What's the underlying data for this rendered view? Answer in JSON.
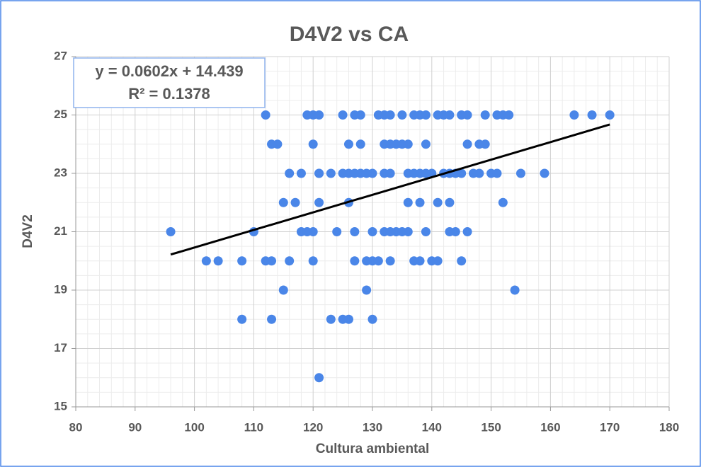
{
  "chart_data": {
    "type": "scatter",
    "title": "D4V2 vs CA",
    "x_label": "Cultura ambiental",
    "y_label": "D4V2",
    "color": "#4a86e8",
    "x": [
      112,
      119,
      120,
      121,
      125,
      127,
      128,
      131,
      132,
      133,
      135,
      137,
      138,
      139,
      141,
      142,
      143,
      145,
      146,
      149,
      151,
      152,
      153,
      164,
      167,
      170,
      113,
      114,
      120,
      126,
      128,
      132,
      133,
      134,
      135,
      136,
      139,
      146,
      148,
      149,
      116,
      118,
      121,
      121,
      123,
      125,
      126,
      127,
      128,
      129,
      130,
      132,
      133,
      136,
      137,
      138,
      139,
      140,
      142,
      143,
      144,
      145,
      147,
      148,
      150,
      151,
      155,
      159,
      115,
      117,
      121,
      126,
      136,
      138,
      141,
      143,
      152,
      96,
      110,
      118,
      119,
      120,
      124,
      127,
      130,
      132,
      133,
      134,
      135,
      136,
      139,
      143,
      144,
      146,
      102,
      104,
      108,
      112,
      113,
      116,
      120,
      127,
      129,
      130,
      131,
      133,
      137,
      138,
      140,
      141,
      145,
      115,
      129,
      154,
      108,
      113,
      123,
      125,
      126,
      130,
      121
    ],
    "y": [
      25,
      25,
      25,
      25,
      25,
      25,
      25,
      25,
      25,
      25,
      25,
      25,
      25,
      25,
      25,
      25,
      25,
      25,
      25,
      25,
      25,
      25,
      25,
      25,
      25,
      25,
      24,
      24,
      24,
      24,
      24,
      24,
      24,
      24,
      24,
      24,
      24,
      24,
      24,
      24,
      23,
      23,
      23,
      23,
      23,
      23,
      23,
      23,
      23,
      23,
      23,
      23,
      23,
      23,
      23,
      23,
      23,
      23,
      23,
      23,
      23,
      23,
      23,
      23,
      23,
      23,
      23,
      23,
      22,
      22,
      22,
      22,
      22,
      22,
      22,
      22,
      22,
      21,
      21,
      21,
      21,
      21,
      21,
      21,
      21,
      21,
      21,
      21,
      21,
      21,
      21,
      21,
      21,
      21,
      20,
      20,
      20,
      20,
      20,
      20,
      20,
      20,
      20,
      20,
      20,
      20,
      20,
      20,
      20,
      20,
      20,
      19,
      19,
      19,
      18,
      18,
      18,
      18,
      18,
      18,
      16
    ],
    "trendline": {
      "slope": 0.0602,
      "intercept": 14.439,
      "x": [
        96,
        170
      ],
      "color": "#000000",
      "equation": "y = 0.0602x + 14.439",
      "r_squared": "R² = 0.1378"
    },
    "xlim": [
      80,
      180
    ],
    "xticks": [
      80,
      90,
      100,
      110,
      120,
      130,
      140,
      150,
      160,
      170,
      180
    ],
    "ylim": [
      15,
      27
    ],
    "yticks": [
      15,
      17,
      19,
      21,
      23,
      25,
      27
    ],
    "grid": true,
    "minor_grid": true
  }
}
